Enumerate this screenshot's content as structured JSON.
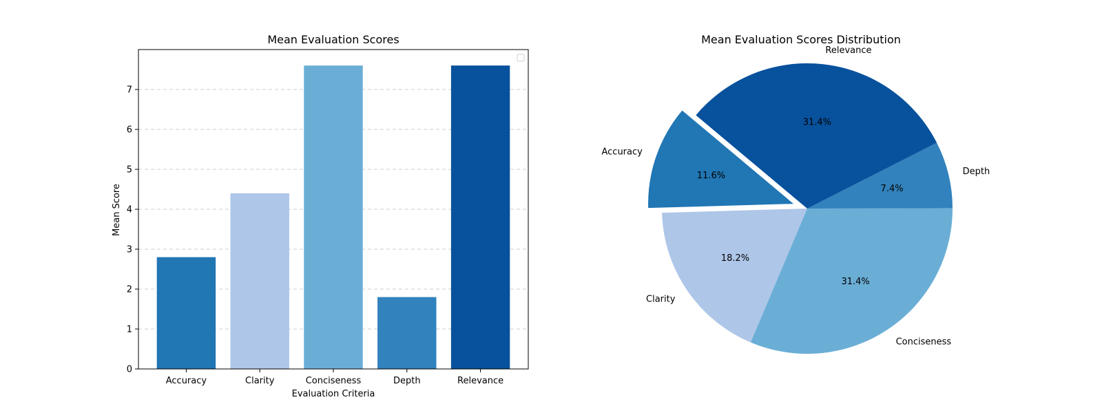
{
  "chart_data": [
    {
      "type": "bar",
      "title": "Mean Evaluation Scores",
      "xlabel": "Evaluation Criteria",
      "ylabel": "Mean Score",
      "categories": [
        "Accuracy",
        "Clarity",
        "Conciseness",
        "Depth",
        "Relevance"
      ],
      "values": [
        2.8,
        4.4,
        7.6,
        1.8,
        7.6
      ],
      "colors": [
        "#2176b4",
        "#aec6e8",
        "#6aaed6",
        "#3282bd",
        "#08519c"
      ],
      "ylim": [
        0,
        8
      ],
      "yticks": [
        "0",
        "1",
        "2",
        "3",
        "4",
        "5",
        "6",
        "7"
      ],
      "grid": "y-dashed",
      "legend": "top-right (empty)"
    },
    {
      "type": "pie",
      "title": "Mean Evaluation Scores Distribution",
      "labels": [
        "Accuracy",
        "Clarity",
        "Conciseness",
        "Depth",
        "Relevance"
      ],
      "values": [
        2.8,
        4.4,
        7.6,
        1.8,
        7.6
      ],
      "percent_labels": [
        "11.6%",
        "18.2%",
        "31.4%",
        "7.4%",
        "31.4%"
      ],
      "colors": [
        "#2176b4",
        "#aec6e8",
        "#6aaed6",
        "#3282bd",
        "#08519c"
      ],
      "explode": [
        0.1,
        0,
        0,
        0,
        0
      ],
      "start_angle": 140
    }
  ]
}
